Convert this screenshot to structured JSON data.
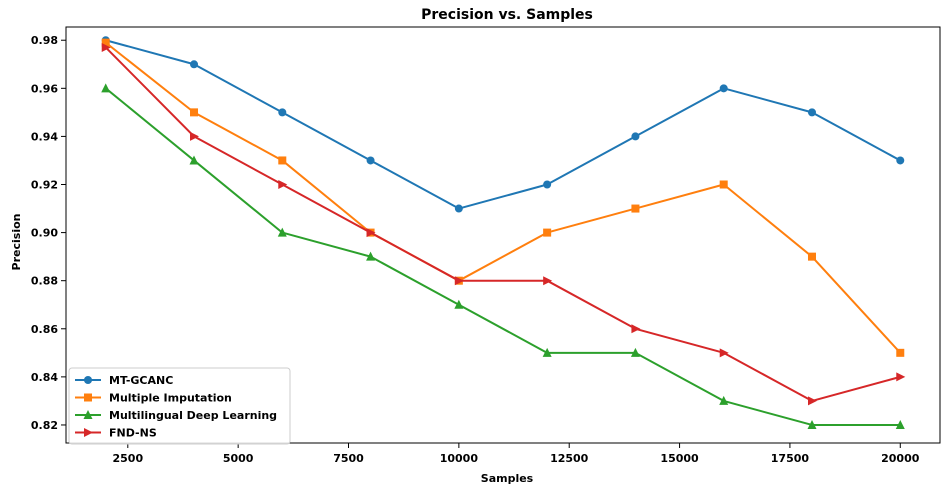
{
  "chart_data": {
    "type": "line",
    "title": "Precision vs. Samples",
    "xlabel": "Samples",
    "ylabel": "Precision",
    "x": [
      2000,
      4000,
      6000,
      8000,
      10000,
      12000,
      14000,
      16000,
      18000,
      20000
    ],
    "xlim": [
      1100,
      20900
    ],
    "ylim": [
      0.8125,
      0.9855
    ],
    "xticks": [
      2500,
      5000,
      7500,
      10000,
      12500,
      15000,
      17500,
      20000
    ],
    "yticks": [
      0.82,
      0.84,
      0.86,
      0.88,
      0.9,
      0.92,
      0.94,
      0.96,
      0.98
    ],
    "ytick_labels": [
      "0.82",
      "0.84",
      "0.86",
      "0.88",
      "0.90",
      "0.92",
      "0.94",
      "0.96",
      "0.98"
    ],
    "grid": false,
    "legend_position": "lower-left",
    "series": [
      {
        "name": "MT-GCANC",
        "color": "#1f77b4",
        "marker": "circle",
        "values": [
          0.98,
          0.97,
          0.95,
          0.93,
          0.91,
          0.92,
          0.94,
          0.96,
          0.95,
          0.93
        ]
      },
      {
        "name": "Multiple Imputation",
        "color": "#ff7f0e",
        "marker": "square",
        "values": [
          0.979,
          0.95,
          0.93,
          0.9,
          0.88,
          0.9,
          0.91,
          0.92,
          0.89,
          0.85
        ]
      },
      {
        "name": "Multilingual Deep Learning",
        "color": "#2ca02c",
        "marker": "triangle-up",
        "values": [
          0.96,
          0.93,
          0.9,
          0.89,
          0.87,
          0.85,
          0.85,
          0.83,
          0.82,
          0.82
        ]
      },
      {
        "name": "FND-NS",
        "color": "#d62728",
        "marker": "triangle-right",
        "values": [
          0.977,
          0.94,
          0.92,
          0.9,
          0.88,
          0.88,
          0.86,
          0.85,
          0.83,
          0.84
        ]
      }
    ]
  }
}
